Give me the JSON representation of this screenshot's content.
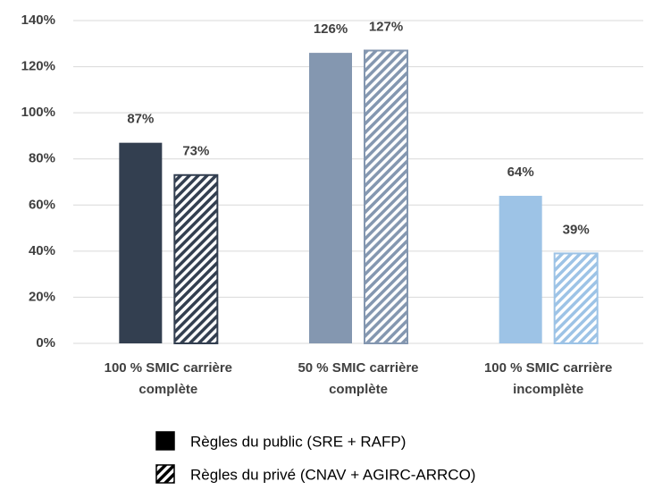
{
  "chart_data": {
    "type": "bar",
    "categories": [
      "100 % SMIC carrière complète",
      "50 % SMIC carrière complète",
      "100 % SMIC carrière incomplète"
    ],
    "series": [
      {
        "name": "Règles du public (SRE + RAFP)",
        "color": "#000000",
        "pattern": "solid",
        "colors": [
          "#333f50",
          "#8497b0",
          "#9dc3e6"
        ],
        "values": [
          87,
          126,
          64
        ],
        "value_labels": [
          "87%",
          "126%",
          "64%"
        ]
      },
      {
        "name": "Règles du privé (CNAV + AGIRC-ARRCO)",
        "color": "#000000",
        "pattern": "hatch",
        "colors": [
          "#333f50",
          "#8497b0",
          "#9dc3e6"
        ],
        "values": [
          73,
          127,
          39
        ],
        "value_labels": [
          "73%",
          "127%",
          "39%"
        ]
      }
    ],
    "ylim": [
      0,
      140
    ],
    "yticks": [
      {
        "value": 0,
        "label": "0%"
      },
      {
        "value": 20,
        "label": "20%"
      },
      {
        "value": 40,
        "label": "40%"
      },
      {
        "value": 60,
        "label": "60%"
      },
      {
        "value": 80,
        "label": "80%"
      },
      {
        "value": 100,
        "label": "100%"
      },
      {
        "value": 120,
        "label": "120%"
      },
      {
        "value": 140,
        "label": "140%"
      }
    ],
    "grid": true
  }
}
